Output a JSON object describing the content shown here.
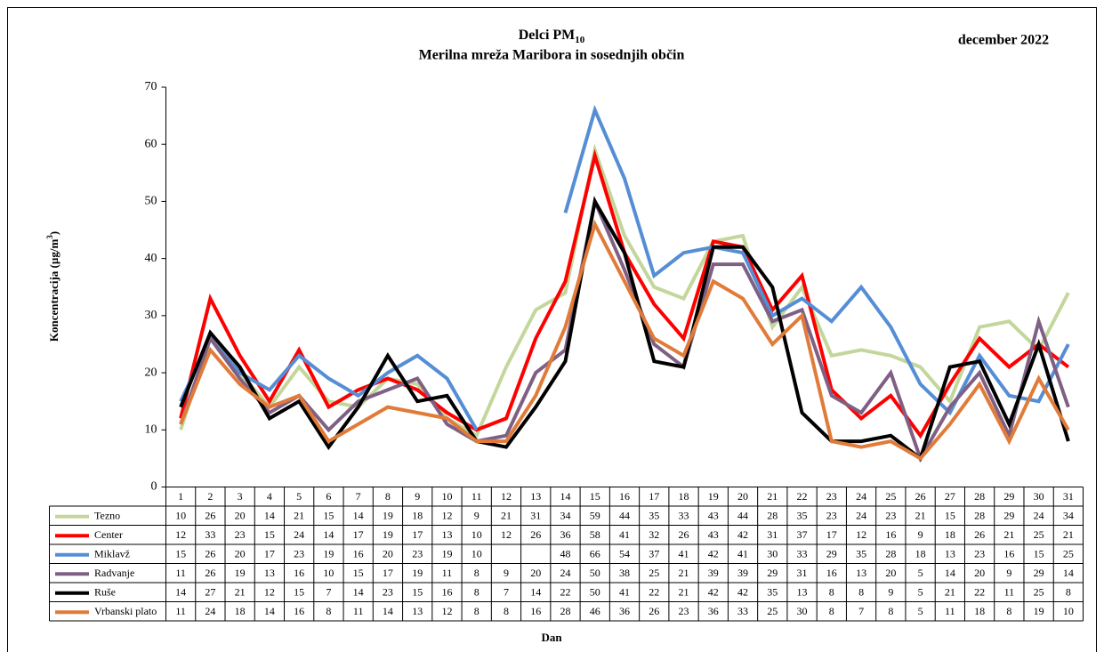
{
  "chart_data": {
    "type": "line",
    "title": {
      "text": "Delci PM",
      "subscript": "10"
    },
    "subtitle": "Merilna mreža Maribora in sosednjih občin",
    "period": "december 2022",
    "y_label": {
      "text": "Koncentracija (µg/m",
      "superscript": "3",
      "suffix": ")"
    },
    "x_label": "Dan",
    "categories": [
      "1",
      "2",
      "3",
      "4",
      "5",
      "6",
      "7",
      "8",
      "9",
      "10",
      "11",
      "12",
      "13",
      "14",
      "15",
      "16",
      "17",
      "18",
      "19",
      "20",
      "21",
      "22",
      "23",
      "24",
      "25",
      "26",
      "27",
      "28",
      "29",
      "30",
      "31"
    ],
    "ylim": [
      0,
      70
    ],
    "yticks": [
      0,
      10,
      20,
      30,
      40,
      50,
      60,
      70
    ],
    "series": [
      {
        "name": "Tezno",
        "color": "#c3d69b",
        "values": [
          10,
          26,
          20,
          14,
          21,
          15,
          14,
          19,
          18,
          12,
          9,
          21,
          31,
          34,
          59,
          44,
          35,
          33,
          43,
          44,
          28,
          35,
          23,
          24,
          23,
          21,
          15,
          28,
          29,
          24,
          34
        ]
      },
      {
        "name": "Center",
        "color": "#ff0000",
        "values": [
          12,
          33,
          23,
          15,
          24,
          14,
          17,
          19,
          17,
          13,
          10,
          12,
          26,
          36,
          58,
          41,
          32,
          26,
          43,
          42,
          31,
          37,
          17,
          12,
          16,
          9,
          18,
          26,
          21,
          25,
          21
        ]
      },
      {
        "name": "Miklavž",
        "color": "#558ed5",
        "values": [
          15,
          26,
          20,
          17,
          23,
          19,
          16,
          20,
          23,
          19,
          10,
          null,
          null,
          48,
          66,
          54,
          37,
          41,
          42,
          41,
          30,
          33,
          29,
          35,
          28,
          18,
          13,
          23,
          16,
          15,
          25
        ]
      },
      {
        "name": "Radvanje",
        "color": "#7f6084",
        "values": [
          11,
          26,
          19,
          13,
          16,
          10,
          15,
          17,
          19,
          11,
          8,
          9,
          20,
          24,
          50,
          38,
          25,
          21,
          39,
          39,
          29,
          31,
          16,
          13,
          20,
          5,
          14,
          20,
          9,
          29,
          14
        ]
      },
      {
        "name": "Ruše",
        "color": "#000000",
        "values": [
          14,
          27,
          21,
          12,
          15,
          7,
          14,
          23,
          15,
          16,
          8,
          7,
          14,
          22,
          50,
          41,
          22,
          21,
          42,
          42,
          35,
          13,
          8,
          8,
          9,
          5,
          21,
          22,
          11,
          25,
          8
        ]
      },
      {
        "name": "Vrbanski plato",
        "color": "#e07b39",
        "values": [
          11,
          24,
          18,
          14,
          16,
          8,
          11,
          14,
          13,
          12,
          8,
          8,
          16,
          28,
          46,
          36,
          26,
          23,
          36,
          33,
          25,
          30,
          8,
          7,
          8,
          5,
          11,
          18,
          8,
          19,
          10
        ]
      }
    ]
  }
}
